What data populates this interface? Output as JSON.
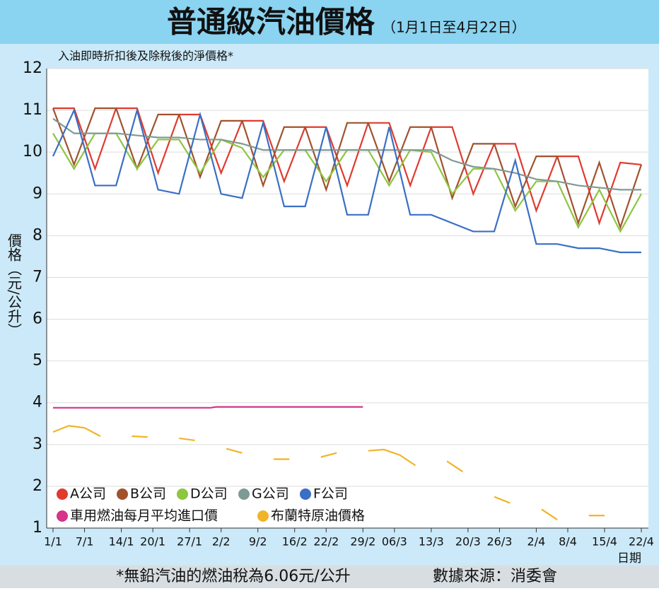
{
  "chart_data": {
    "type": "line",
    "title": "普通級汽油價格",
    "title_note": "（1月1日至4月22日）",
    "subtitle": "入油即時折扣後及除稅後的淨價格*",
    "y_label": "價格（元/公升）",
    "x_label": "日期",
    "footnote": "*無鉛汽油的燃油稅為6.06元/公升",
    "source": "數據來源：消委會",
    "x": [
      1,
      5,
      9,
      13,
      17,
      21,
      25,
      29,
      33,
      37,
      41,
      45,
      49,
      53,
      57,
      61,
      65,
      69,
      73,
      77,
      81,
      85,
      89,
      93,
      97,
      101,
      105,
      109,
      113
    ],
    "xlim": [
      1,
      113
    ],
    "xticks": [
      {
        "value": 1,
        "label": "1/1"
      },
      {
        "value": 7,
        "label": "7/1"
      },
      {
        "value": 14,
        "label": "14/1"
      },
      {
        "value": 20,
        "label": "20/1"
      },
      {
        "value": 27,
        "label": "27/1"
      },
      {
        "value": 33,
        "label": "2/2"
      },
      {
        "value": 40,
        "label": "9/2"
      },
      {
        "value": 47,
        "label": "16/2"
      },
      {
        "value": 53,
        "label": "22/2"
      },
      {
        "value": 60,
        "label": "29/2"
      },
      {
        "value": 66,
        "label": "06/3"
      },
      {
        "value": 73,
        "label": "13/3"
      },
      {
        "value": 80,
        "label": "20/3"
      },
      {
        "value": 86,
        "label": "26/3"
      },
      {
        "value": 93,
        "label": "2/4"
      },
      {
        "value": 99,
        "label": "8/4"
      },
      {
        "value": 106,
        "label": "15/4"
      },
      {
        "value": 113,
        "label": "22/4"
      }
    ],
    "ylim": [
      1,
      12
    ],
    "yticks": [
      1,
      2,
      3,
      4,
      5,
      6,
      7,
      8,
      9,
      10,
      11,
      12
    ],
    "grid": true,
    "series": [
      {
        "name": "A公司",
        "color": "#e03a2f",
        "values": [
          11.05,
          11.05,
          9.6,
          11.05,
          11.05,
          9.5,
          10.9,
          10.9,
          9.5,
          10.75,
          10.75,
          9.3,
          10.6,
          10.6,
          9.2,
          10.7,
          10.7,
          9.2,
          10.6,
          10.6,
          9.0,
          10.2,
          10.2,
          8.6,
          9.9,
          9.9,
          8.3,
          9.75,
          9.7
        ]
      },
      {
        "name": "B公司",
        "color": "#a0522d",
        "values": [
          11.05,
          9.7,
          11.05,
          11.05,
          9.6,
          10.9,
          10.9,
          9.4,
          10.75,
          10.75,
          9.2,
          10.6,
          10.6,
          9.1,
          10.7,
          10.7,
          9.3,
          10.6,
          10.6,
          8.9,
          10.2,
          10.2,
          8.7,
          9.9,
          9.9,
          8.3,
          9.75,
          8.2,
          9.7
        ]
      },
      {
        "name": "D公司",
        "color": "#8dc63f",
        "values": [
          10.45,
          9.6,
          10.45,
          10.45,
          9.6,
          10.3,
          10.3,
          9.5,
          10.3,
          10.1,
          9.4,
          10.05,
          10.05,
          9.3,
          10.05,
          10.05,
          9.2,
          10.05,
          10.0,
          9.0,
          9.6,
          9.6,
          8.6,
          9.3,
          9.3,
          8.2,
          9.1,
          8.1,
          9.0
        ]
      },
      {
        "name": "G公司",
        "color": "#7f9a94",
        "values": [
          10.8,
          10.45,
          10.45,
          10.45,
          10.4,
          10.35,
          10.35,
          10.3,
          10.3,
          10.2,
          10.05,
          10.05,
          10.05,
          10.05,
          10.05,
          10.05,
          10.05,
          10.05,
          10.05,
          9.8,
          9.65,
          9.6,
          9.5,
          9.35,
          9.3,
          9.2,
          9.15,
          9.1,
          9.1
        ]
      },
      {
        "name": "F公司",
        "color": "#3a6fc4",
        "values": [
          9.9,
          11.0,
          9.2,
          9.2,
          11.0,
          9.1,
          9.0,
          10.9,
          9.0,
          8.9,
          10.7,
          8.7,
          8.7,
          10.6,
          8.5,
          8.5,
          10.6,
          8.5,
          8.5,
          8.3,
          8.1,
          8.1,
          9.8,
          7.8,
          7.8,
          7.7,
          7.7,
          7.6,
          7.6
        ]
      },
      {
        "name": "車用燃油每月平均進口價",
        "color": "#d6338a",
        "x": [
          1,
          31,
          32,
          60
        ],
        "values": [
          3.88,
          3.88,
          3.9,
          3.9
        ]
      },
      {
        "name": "布蘭特原油價格",
        "color": "#f0b429",
        "x": [
          1,
          4,
          7,
          10,
          13,
          16,
          19,
          22,
          25,
          28,
          31,
          34,
          37,
          40,
          43,
          46,
          49,
          52,
          55,
          58,
          61,
          64,
          67,
          70,
          73,
          76,
          79,
          82,
          85,
          88,
          91,
          94,
          97,
          100,
          103,
          106,
          109
        ],
        "values": [
          3.3,
          3.45,
          3.4,
          3.2,
          null,
          3.2,
          3.18,
          null,
          3.15,
          3.1,
          null,
          2.9,
          2.8,
          null,
          2.65,
          2.65,
          null,
          2.7,
          2.8,
          null,
          2.85,
          2.88,
          2.75,
          2.5,
          null,
          2.6,
          2.35,
          null,
          1.75,
          1.6,
          null,
          1.45,
          1.2,
          null,
          1.3,
          1.3,
          null
        ]
      }
    ]
  }
}
